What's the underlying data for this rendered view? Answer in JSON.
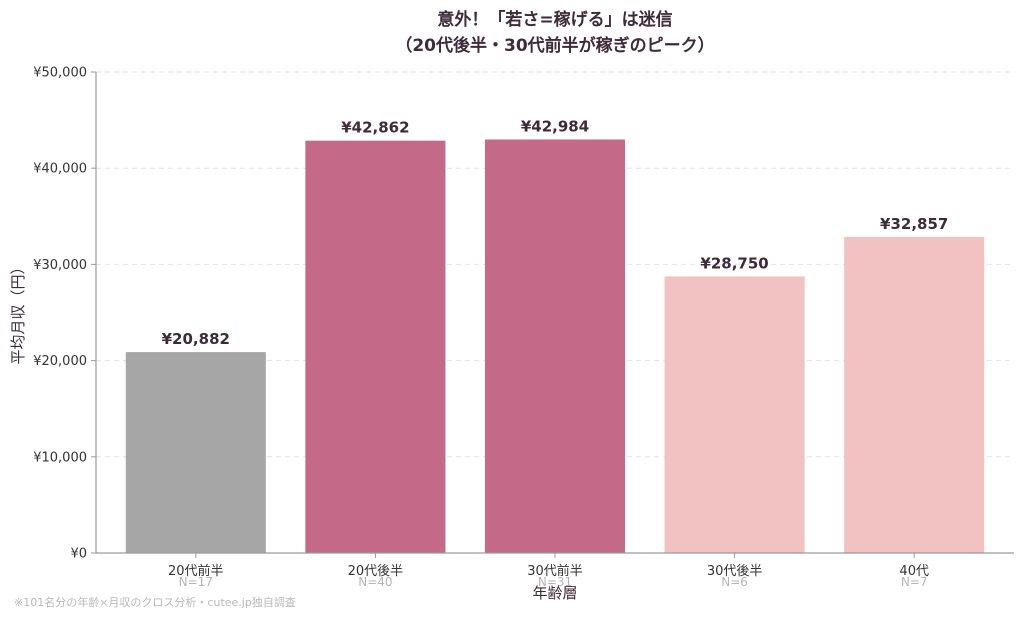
{
  "chart_data": {
    "type": "bar",
    "title": [
      "意外！「若さ=稼げる」は迷信",
      "（20代後半・30代前半が稼ぎのピーク）"
    ],
    "xlabel": "年齢層",
    "ylabel": "平均月収（円）",
    "categories": [
      "20代前半",
      "20代後半",
      "30代前半",
      "30代後半",
      "40代"
    ],
    "values": [
      20882,
      42862,
      42984,
      28750,
      32857
    ],
    "value_labels": [
      "¥20,882",
      "¥42,862",
      "¥42,984",
      "¥28,750",
      "¥32,857"
    ],
    "n_labels": [
      "N=17",
      "N=40",
      "N=31",
      "N=6",
      "N=7"
    ],
    "colors": [
      "#a6a6a6",
      "#c46987",
      "#c46987",
      "#f2c1c1",
      "#f2c1c1"
    ],
    "ylim": [
      0,
      50000
    ],
    "yticks": [
      0,
      10000,
      20000,
      30000,
      40000,
      50000
    ],
    "ytick_labels": [
      "¥0",
      "¥10,000",
      "¥20,000",
      "¥30,000",
      "¥40,000",
      "¥50,000"
    ],
    "grid": true,
    "footnote": "※101名分の年齢×月収のクロス分析・cutee.jp独自調査"
  }
}
